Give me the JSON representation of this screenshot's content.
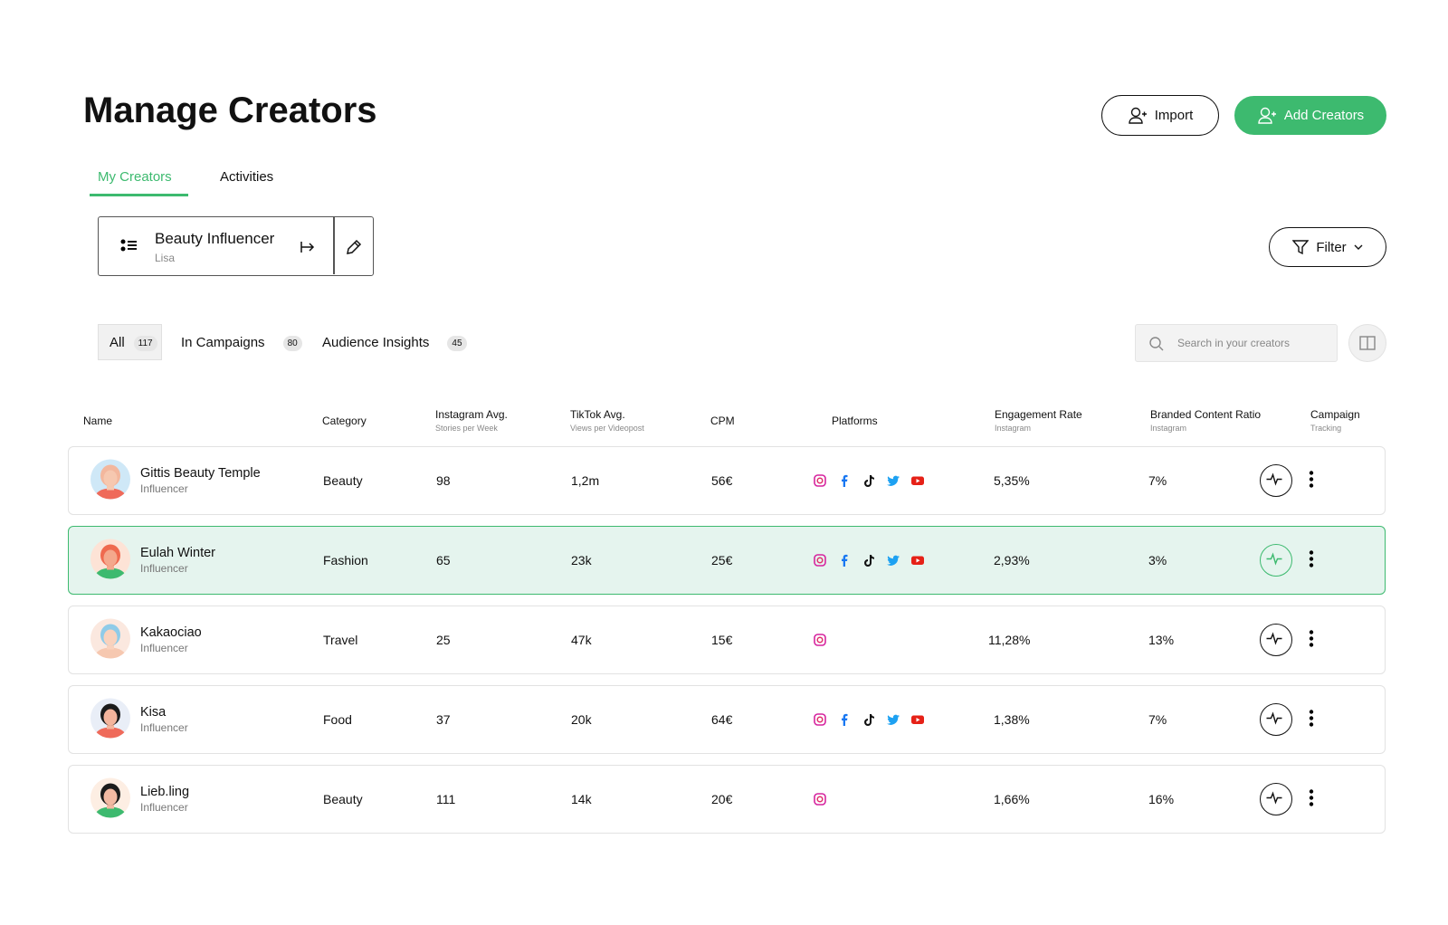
{
  "header": {
    "title": "Manage Creators",
    "buttons": [
      "Import",
      "Add Creators"
    ]
  },
  "tabs": [
    "My Creators",
    "Activities"
  ],
  "list": {
    "name": "Beauty Influencer",
    "owner": "Lisa"
  },
  "filter": "Filter",
  "segments": [
    {
      "label": "All",
      "count": 117
    },
    {
      "label": "In Campaigns",
      "count": 80
    },
    {
      "label": "Audience Insights",
      "count": 45
    }
  ],
  "search": "Search in your creators",
  "table": {
    "columns": [
      {
        "title": "Name"
      },
      {
        "title": "Category"
      },
      {
        "title": "Instagram Avg.",
        "sub": "Stories per Week"
      },
      {
        "title": "TikTok Avg.",
        "sub": "Views per Videopost"
      },
      {
        "title": "CPM"
      },
      {
        "title": "Platforms"
      },
      {
        "title": "Engagement Rate",
        "sub": "Instagram"
      },
      {
        "title": "Branded Content Ratio",
        "sub": "Instagram"
      },
      {
        "title": "Campaign",
        "sub": "Tracking"
      }
    ],
    "rows": [
      {
        "name": "Gittis Beauty Temple",
        "role": "Influencer",
        "category": "Beauty",
        "instagram": 98,
        "tiktok": "1,2m",
        "cpm": "56€",
        "engagement": "5,35%",
        "branded": "7%"
      },
      {
        "name": "Eulah Winter",
        "role": "Influencer",
        "category": "Fashion",
        "instagram": 65,
        "tiktok": "23k",
        "cpm": "25€",
        "engagement": "2,93%",
        "branded": "3%"
      },
      {
        "name": "Kakaociao",
        "role": "Influencer",
        "category": "Travel",
        "instagram": 25,
        "tiktok": "47k",
        "cpm": "15€",
        "engagement": "11,28%",
        "branded": "13%"
      },
      {
        "name": "Kisa",
        "role": "Influencer",
        "category": "Food",
        "instagram": 37,
        "tiktok": "20k",
        "cpm": "64€",
        "engagement": "1,38%",
        "branded": "7%"
      },
      {
        "name": "Lieb.ling",
        "role": "Influencer",
        "category": "Beauty",
        "instagram": 111,
        "tiktok": "14k",
        "cpm": "20€",
        "engagement": "1,66%",
        "branded": "16%"
      }
    ]
  }
}
